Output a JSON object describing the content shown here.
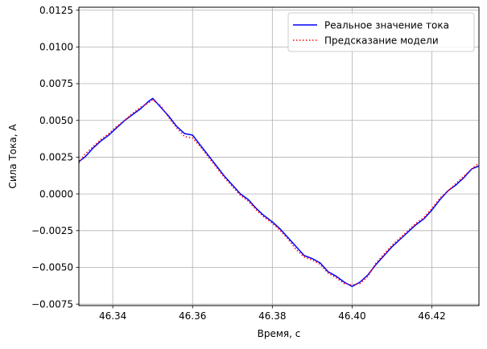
{
  "chart_data": {
    "type": "line",
    "title": "",
    "xlabel": "Время, с",
    "ylabel": "Сила Тока, А",
    "xlim": [
      46.3315,
      46.4318
    ],
    "ylim": [
      -0.0076,
      0.0127
    ],
    "xticks": [
      46.34,
      46.36,
      46.38,
      46.4,
      46.42
    ],
    "xtick_labels": [
      "46.34",
      "46.36",
      "46.38",
      "46.40",
      "46.42"
    ],
    "yticks": [
      -0.0075,
      -0.005,
      -0.0025,
      0.0,
      0.0025,
      0.005,
      0.0075,
      0.01,
      0.0125
    ],
    "ytick_labels": [
      "−0.0075",
      "−0.0050",
      "−0.0025",
      "0.0000",
      "0.0025",
      "0.0050",
      "0.0075",
      "0.0100",
      "0.0125"
    ],
    "grid": true,
    "legend_position": "top-right",
    "series": [
      {
        "name": "Реальное значение тока",
        "color": "#0000ff",
        "style": "solid",
        "x": [
          46.3315,
          46.333,
          46.335,
          46.337,
          46.339,
          46.341,
          46.343,
          46.345,
          46.347,
          46.349,
          46.35,
          46.352,
          46.354,
          46.356,
          46.358,
          46.36,
          46.362,
          46.364,
          46.366,
          46.368,
          46.37,
          46.372,
          46.374,
          46.376,
          46.378,
          46.38,
          46.382,
          46.384,
          46.386,
          46.388,
          46.39,
          46.392,
          46.394,
          46.396,
          46.398,
          46.4,
          46.402,
          46.404,
          46.406,
          46.408,
          46.41,
          46.412,
          46.414,
          46.416,
          46.418,
          46.42,
          46.422,
          46.424,
          46.426,
          46.428,
          46.43,
          46.4318
        ],
        "values": [
          0.0022,
          0.0025,
          0.0031,
          0.0036,
          0.004,
          0.0045,
          0.005,
          0.0054,
          0.0058,
          0.0063,
          0.0065,
          0.0059,
          0.0053,
          0.0046,
          0.0041,
          0.004,
          0.0033,
          0.0026,
          0.0019,
          0.0012,
          0.0006,
          0.0,
          -0.0004,
          -0.001,
          -0.0015,
          -0.0019,
          -0.0024,
          -0.003,
          -0.0036,
          -0.0042,
          -0.0044,
          -0.0047,
          -0.0053,
          -0.0056,
          -0.006,
          -0.0063,
          -0.006,
          -0.0055,
          -0.0048,
          -0.0042,
          -0.0036,
          -0.0031,
          -0.0026,
          -0.0021,
          -0.0017,
          -0.0011,
          -0.0004,
          0.0002,
          0.0006,
          0.0011,
          0.0017,
          0.0019
        ]
      },
      {
        "name": "Предсказание модели",
        "color": "#ff0000",
        "style": "dotted",
        "x": [
          46.3315,
          46.333,
          46.335,
          46.337,
          46.339,
          46.341,
          46.343,
          46.345,
          46.347,
          46.349,
          46.35,
          46.352,
          46.354,
          46.356,
          46.358,
          46.36,
          46.362,
          46.364,
          46.366,
          46.368,
          46.37,
          46.372,
          46.374,
          46.376,
          46.378,
          46.38,
          46.382,
          46.384,
          46.386,
          46.388,
          46.39,
          46.392,
          46.394,
          46.396,
          46.398,
          46.4,
          46.402,
          46.404,
          46.406,
          46.408,
          46.41,
          46.412,
          46.414,
          46.416,
          46.418,
          46.42,
          46.422,
          46.424,
          46.426,
          46.428,
          46.43,
          46.4318
        ],
        "values": [
          0.0021,
          0.0027,
          0.0032,
          0.0037,
          0.0041,
          0.0046,
          0.005,
          0.0055,
          0.0059,
          0.0062,
          0.0064,
          0.006,
          0.0052,
          0.0045,
          0.0039,
          0.0038,
          0.0032,
          0.0025,
          0.0018,
          0.0011,
          0.0005,
          -0.0001,
          -0.0005,
          -0.0011,
          -0.0016,
          -0.002,
          -0.0025,
          -0.0031,
          -0.0038,
          -0.0043,
          -0.0045,
          -0.0048,
          -0.0054,
          -0.0057,
          -0.0061,
          -0.0062,
          -0.0061,
          -0.0056,
          -0.0047,
          -0.0041,
          -0.0035,
          -0.003,
          -0.0025,
          -0.002,
          -0.0016,
          -0.001,
          -0.0003,
          0.0002,
          0.0007,
          0.0012,
          0.0017,
          0.0021
        ]
      }
    ]
  }
}
